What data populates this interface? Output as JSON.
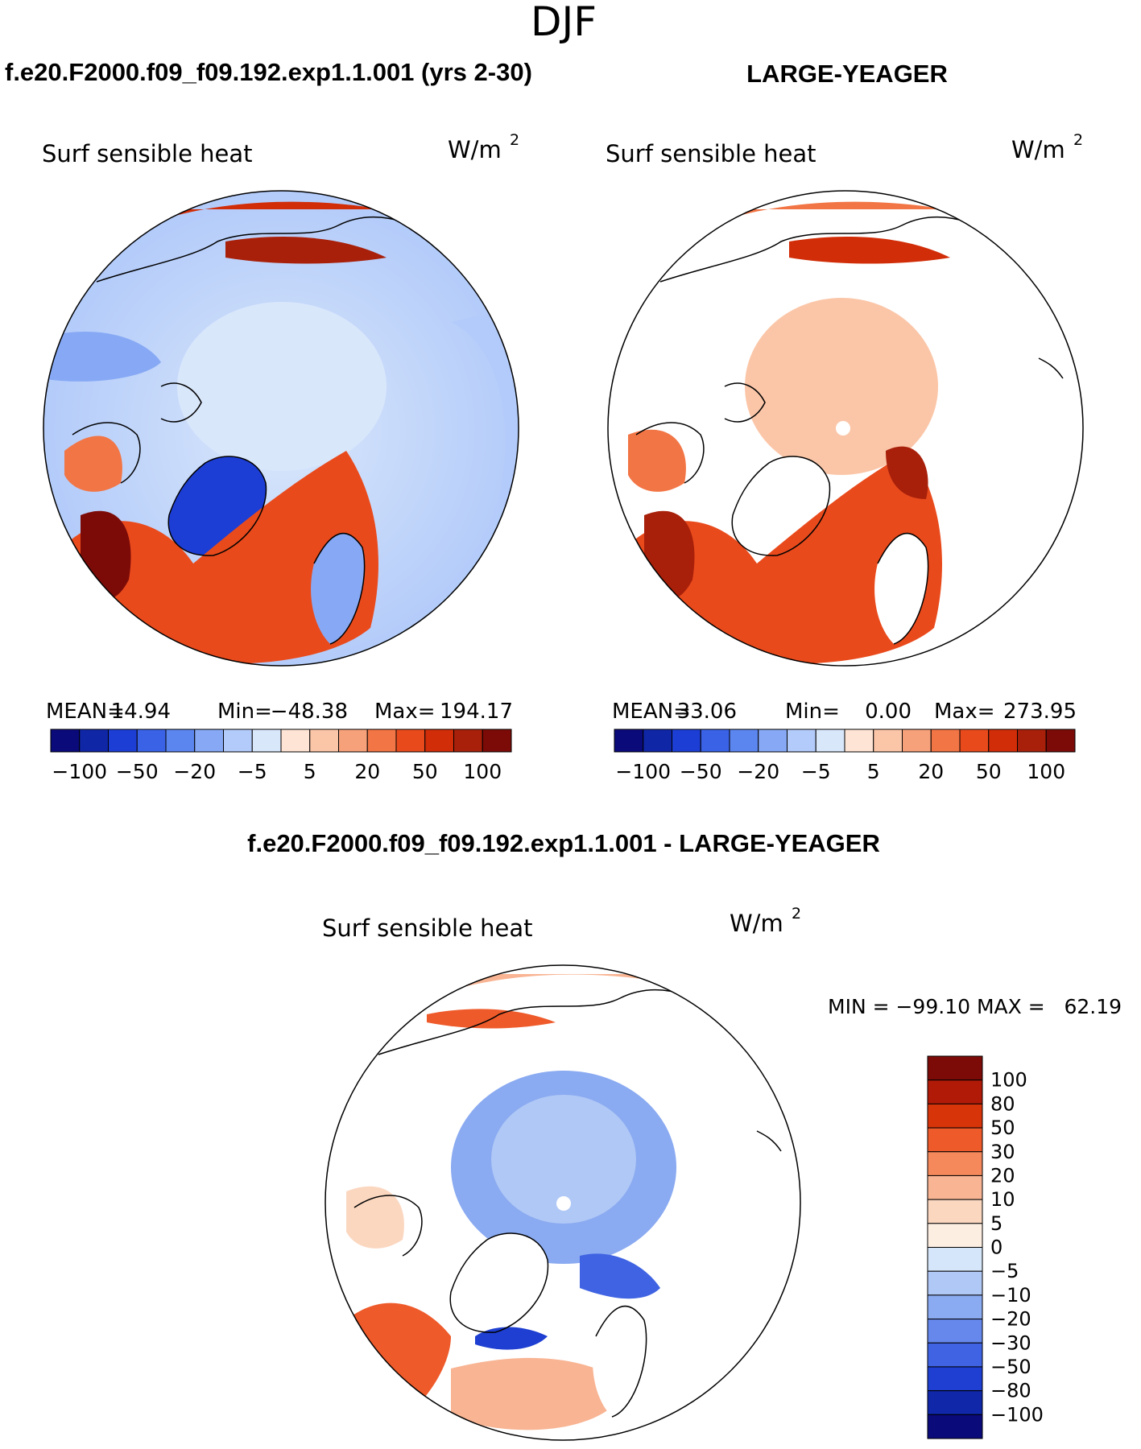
{
  "page_title": "DJF",
  "left_panel": {
    "header": "f.e20.F2000.f09_f09.192.exp1.1.001 (yrs 2-30)",
    "variable": "Surf sensible heat",
    "units_base": "W/m",
    "units_exp": "2",
    "stats_mean_label": "MEAN=",
    "stats_mean": "14.94",
    "stats_min_label": "Min=",
    "stats_min": "−48.38",
    "stats_max_label": "Max=",
    "stats_max": "194.17"
  },
  "right_panel": {
    "header": "LARGE-YEAGER",
    "variable": "Surf sensible heat",
    "units_base": "W/m",
    "units_exp": "2",
    "stats_mean_label": "MEAN=",
    "stats_mean": "33.06",
    "stats_min_label": "Min=",
    "stats_min": "0.00",
    "stats_max_label": "Max=",
    "stats_max": "273.95"
  },
  "diff_panel": {
    "header": "f.e20.F2000.f09_f09.192.exp1.1.001 - LARGE-YEAGER",
    "variable": "Surf sensible heat",
    "units_base": "W/m",
    "units_exp": "2",
    "minmax": "MIN = −99.10 MAX =   62.19"
  },
  "horizontal_colorbar": {
    "colors": [
      "#0a0a7a",
      "#0f26a6",
      "#1c3ed4",
      "#3a62e6",
      "#5c86ef",
      "#87a9f5",
      "#b3cbfa",
      "#d9e7fb",
      "#fde4d4",
      "#fbc6a8",
      "#f7a17a",
      "#f27545",
      "#e94a1c",
      "#d12d08",
      "#a8200a",
      "#7c0b08"
    ],
    "labels": [
      "−100",
      "−50",
      "−20",
      "−5",
      "5",
      "20",
      "50",
      "100"
    ]
  },
  "vertical_colorbar": {
    "colors": [
      "#7c0b08",
      "#b21a08",
      "#d8340a",
      "#ee5a2a",
      "#f5895c",
      "#f8b493",
      "#fbd7c0",
      "#fdeee2",
      "#d5e6fa",
      "#b0c8f6",
      "#8aaaf1",
      "#6688ec",
      "#3f63e2",
      "#1e3fd1",
      "#0f27a8",
      "#0a0a7a"
    ],
    "labels": [
      "100",
      "80",
      "50",
      "30",
      "20",
      "10",
      "5",
      "0",
      "−5",
      "−10",
      "−20",
      "−30",
      "−50",
      "−80",
      "−100"
    ]
  }
}
